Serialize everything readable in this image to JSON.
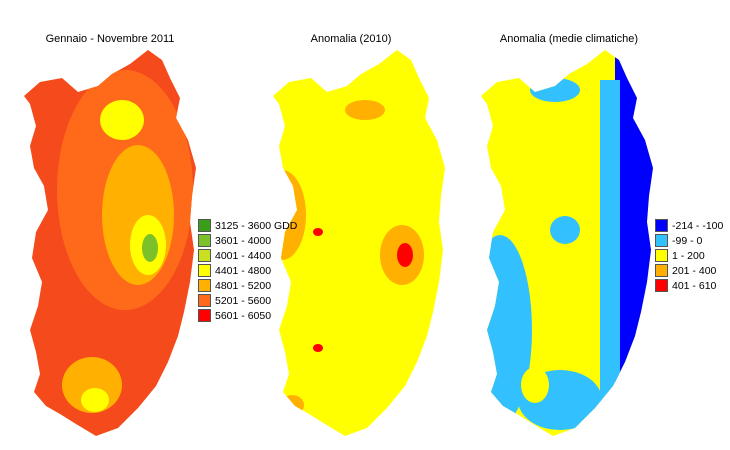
{
  "maps": [
    {
      "title": "Gennaio - Novembre 2011",
      "base": "#f54a1c",
      "legend": [
        {
          "label": "3125 - 3600 GDD",
          "color": "#3a9e1a"
        },
        {
          "label": "3601 - 4000",
          "color": "#7cc12a"
        },
        {
          "label": "4001 - 4400",
          "color": "#c8e020"
        },
        {
          "label": "4401 - 4800",
          "color": "#ffff00"
        },
        {
          "label": "4801 - 5200",
          "color": "#ffb000"
        },
        {
          "label": "5201 - 5600",
          "color": "#ff6a1a"
        },
        {
          "label": "5601 - 6050",
          "color": "#ff0000"
        }
      ]
    },
    {
      "title": "Anomalia (2010)",
      "base": "#ffff00",
      "legend": []
    },
    {
      "title": "Anomalia (medie climatiche)",
      "base": "#ffff00",
      "legend": [
        {
          "label": "-214 - -100",
          "color": "#0000ff"
        },
        {
          "label": "-99 - 0",
          "color": "#33c0ff"
        },
        {
          "label": "1 - 200",
          "color": "#ffff00"
        },
        {
          "label": "201 - 400",
          "color": "#ffb000"
        },
        {
          "label": "401 - 610",
          "color": "#ff0000"
        }
      ]
    }
  ]
}
